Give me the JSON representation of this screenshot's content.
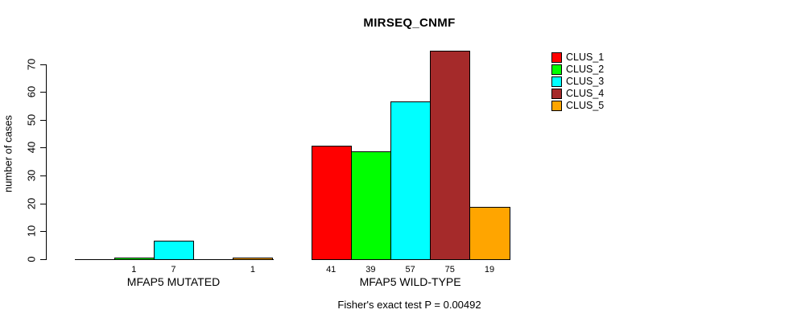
{
  "chart_data": {
    "type": "bar",
    "title": "MIRSEQ_CNMF",
    "ylabel": "number of cases",
    "xlabel": "",
    "ylim": [
      0,
      70
    ],
    "yticks": [
      0,
      10,
      20,
      30,
      40,
      50,
      60,
      70
    ],
    "categories": [
      "MFAP5 MUTATED",
      "MFAP5 WILD-TYPE"
    ],
    "series": [
      {
        "name": "CLUS_1",
        "color": "#ff0000",
        "values": [
          0,
          41
        ]
      },
      {
        "name": "CLUS_2",
        "color": "#00ff00",
        "values": [
          1,
          39
        ]
      },
      {
        "name": "CLUS_3",
        "color": "#00ffff",
        "values": [
          7,
          57
        ]
      },
      {
        "name": "CLUS_4",
        "color": "#a52a2a",
        "values": [
          0,
          75
        ]
      },
      {
        "name": "CLUS_5",
        "color": "#ffa500",
        "values": [
          1,
          19
        ]
      }
    ],
    "grid": false,
    "legend_position": "top-right",
    "bar_value_labels": "shown beneath each nonzero bar",
    "annotation": "Fisher's exact test P = 0.00492",
    "axis_color": "#000000",
    "background_color": "#ffffff"
  }
}
